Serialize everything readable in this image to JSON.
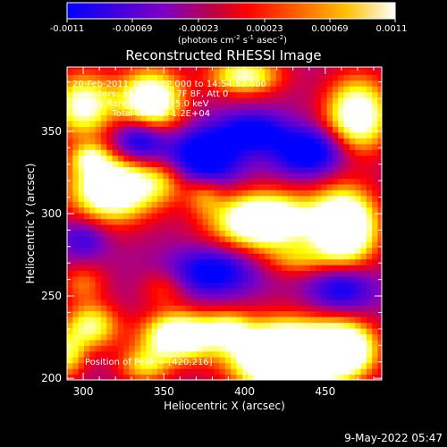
{
  "chart_data": {
    "type": "heatmap",
    "title": "Reconstructed RHESSI Image",
    "xlabel": "Heliocentric X (arcsec)",
    "ylabel": "Heliocentric Y (arcsec)",
    "xlim": [
      290,
      485
    ],
    "ylim": [
      199,
      389
    ],
    "x_ticks": [
      300,
      350,
      400,
      450
    ],
    "y_ticks": [
      200,
      250,
      300,
      350
    ],
    "colorbar": {
      "vmin": -0.0011,
      "vmax": 0.0011,
      "ticks": [
        "-0.0011",
        "-0.00069",
        "-0.00023",
        "0.00023",
        "0.00069",
        "0.0011"
      ],
      "units_text": "(photons cm",
      "units_exp1": "-2",
      "units_mid": " s",
      "units_exp2": "-1",
      "units_end": " asec",
      "units_exp3": "-2",
      "units_close": ")"
    },
    "annotations": [
      "20-Feb-2011 14:51:32.000 to 14:54:52.000",
      "Detectors: 3F 4F 5F 6F 7F 8F, Att 0",
      "Energy Range: 12.0 - 25.0 keV",
      "Clean     Total counts: 1.2E+04"
    ],
    "peak_text": "Position of Peak = [420,216]",
    "colormap": [
      "#0000ff",
      "#8000c0",
      "#ff0000",
      "#ff8000",
      "#ffff00",
      "#ffffff"
    ],
    "background_value": -0.00025,
    "sources": [
      {
        "x": 300,
        "y": 366,
        "sx": 14,
        "sy": 14,
        "amp": 0.0014
      },
      {
        "x": 342,
        "y": 368,
        "sx": 14,
        "sy": 14,
        "amp": 0.0018
      },
      {
        "x": 400,
        "y": 384,
        "sx": 16,
        "sy": 8,
        "amp": 0.0013
      },
      {
        "x": 470,
        "y": 360,
        "sx": 14,
        "sy": 16,
        "amp": 0.0017
      },
      {
        "x": 304,
        "y": 334,
        "sx": 8,
        "sy": 6,
        "amp": 0.0008
      },
      {
        "x": 318,
        "y": 316,
        "sx": 18,
        "sy": 14,
        "amp": 0.002
      },
      {
        "x": 350,
        "y": 320,
        "sx": 12,
        "sy": 10,
        "amp": 0.0007
      },
      {
        "x": 412,
        "y": 296,
        "sx": 22,
        "sy": 12,
        "amp": 0.0021
      },
      {
        "x": 462,
        "y": 292,
        "sx": 14,
        "sy": 16,
        "amp": 0.0022
      },
      {
        "x": 375,
        "y": 312,
        "sx": 8,
        "sy": 8,
        "amp": 0.0006
      },
      {
        "x": 432,
        "y": 272,
        "sx": 14,
        "sy": 7,
        "amp": 0.0006
      },
      {
        "x": 300,
        "y": 258,
        "sx": 10,
        "sy": 8,
        "amp": 0.0006
      },
      {
        "x": 350,
        "y": 255,
        "sx": 10,
        "sy": 8,
        "amp": 0.0005
      },
      {
        "x": 305,
        "y": 232,
        "sx": 12,
        "sy": 10,
        "amp": 0.0012
      },
      {
        "x": 360,
        "y": 226,
        "sx": 16,
        "sy": 10,
        "amp": 0.0019
      },
      {
        "x": 390,
        "y": 230,
        "sx": 10,
        "sy": 8,
        "amp": 0.0009
      },
      {
        "x": 425,
        "y": 214,
        "sx": 22,
        "sy": 14,
        "amp": 0.0029
      },
      {
        "x": 462,
        "y": 218,
        "sx": 14,
        "sy": 12,
        "amp": 0.0018
      },
      {
        "x": 290,
        "y": 214,
        "sx": 8,
        "sy": 10,
        "amp": 0.001
      },
      {
        "x": 338,
        "y": 208,
        "sx": 12,
        "sy": 8,
        "amp": 0.0009
      },
      {
        "x": 335,
        "y": 345,
        "sx": 12,
        "sy": 10,
        "amp": -0.0012
      },
      {
        "x": 375,
        "y": 335,
        "sx": 16,
        "sy": 12,
        "amp": -0.0013
      },
      {
        "x": 440,
        "y": 338,
        "sx": 16,
        "sy": 10,
        "amp": -0.0012
      },
      {
        "x": 405,
        "y": 350,
        "sx": 14,
        "sy": 8,
        "amp": -0.001
      },
      {
        "x": 380,
        "y": 265,
        "sx": 18,
        "sy": 10,
        "amp": -0.001
      },
      {
        "x": 460,
        "y": 255,
        "sx": 14,
        "sy": 10,
        "amp": -0.0009
      },
      {
        "x": 300,
        "y": 285,
        "sx": 10,
        "sy": 8,
        "amp": -0.0006
      }
    ]
  },
  "footer": {
    "timestamp": "9-May-2022 05:47"
  }
}
